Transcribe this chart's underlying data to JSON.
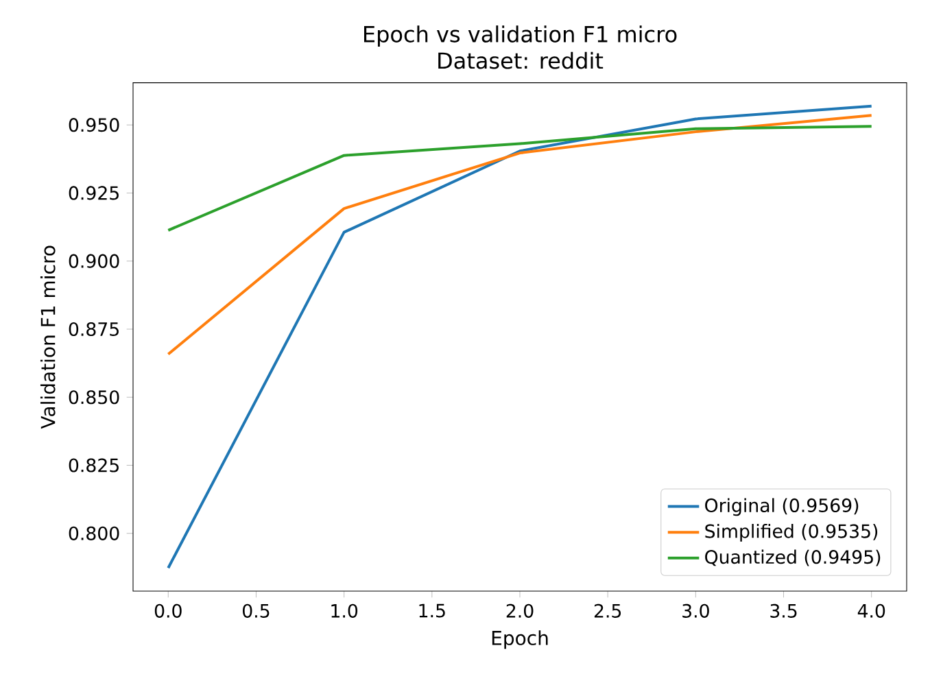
{
  "chart_data": {
    "type": "line",
    "title": "Epoch vs validation F1 micro",
    "subtitle": "Dataset: reddit",
    "xlabel": "Epoch",
    "ylabel": "Validation F1 micro",
    "x": [
      0,
      1,
      2,
      3,
      4
    ],
    "series": [
      {
        "name": "Original (0.9569)",
        "color": "#1f77b4",
        "values": [
          0.7873,
          0.9106,
          0.9404,
          0.9522,
          0.9569
        ]
      },
      {
        "name": "Simplified (0.9535)",
        "color": "#ff7f0e",
        "values": [
          0.8658,
          0.9193,
          0.9397,
          0.9475,
          0.9535
        ]
      },
      {
        "name": "Quantized (0.9495)",
        "color": "#2ca02c",
        "values": [
          0.9113,
          0.9388,
          0.9431,
          0.9486,
          0.9495
        ]
      }
    ],
    "xlim": [
      -0.2,
      4.2
    ],
    "ylim": [
      0.7788,
      0.9655
    ],
    "xticks": [
      {
        "value": 0,
        "label": "0.0"
      },
      {
        "value": 0.5,
        "label": "0.5"
      },
      {
        "value": 1,
        "label": "1.0"
      },
      {
        "value": 1.5,
        "label": "1.5"
      },
      {
        "value": 2,
        "label": "2.0"
      },
      {
        "value": 2.5,
        "label": "2.5"
      },
      {
        "value": 3,
        "label": "3.0"
      },
      {
        "value": 3.5,
        "label": "3.5"
      },
      {
        "value": 4,
        "label": "4.0"
      }
    ],
    "yticks": [
      {
        "value": 0.8,
        "label": "0.800"
      },
      {
        "value": 0.825,
        "label": "0.825"
      },
      {
        "value": 0.85,
        "label": "0.850"
      },
      {
        "value": 0.875,
        "label": "0.875"
      },
      {
        "value": 0.9,
        "label": "0.900"
      },
      {
        "value": 0.925,
        "label": "0.925"
      },
      {
        "value": 0.95,
        "label": "0.950"
      }
    ],
    "legend": "bottom right",
    "grid": false,
    "marker": "none",
    "line_style": "solid"
  }
}
